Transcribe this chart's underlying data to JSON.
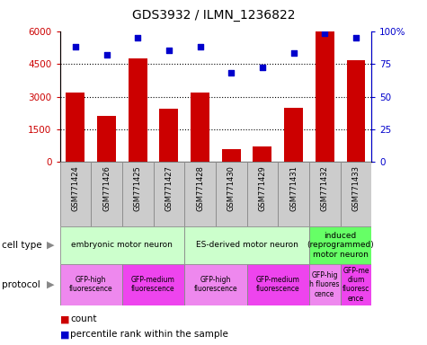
{
  "title": "GDS3932 / ILMN_1236822",
  "samples": [
    "GSM771424",
    "GSM771426",
    "GSM771425",
    "GSM771427",
    "GSM771428",
    "GSM771430",
    "GSM771429",
    "GSM771431",
    "GSM771432",
    "GSM771433"
  ],
  "counts": [
    3200,
    2100,
    4750,
    2450,
    3200,
    600,
    700,
    2500,
    6000,
    4650
  ],
  "percentiles": [
    88,
    82,
    95,
    85,
    88,
    68,
    72,
    83,
    98,
    95
  ],
  "cell_types": [
    {
      "label": "embryonic motor neuron",
      "start": 0,
      "end": 4,
      "color": "#ccffcc"
    },
    {
      "label": "ES-derived motor neuron",
      "start": 4,
      "end": 8,
      "color": "#ccffcc"
    },
    {
      "label": "induced\n(reprogrammed)\nmotor neuron",
      "start": 8,
      "end": 10,
      "color": "#66ff66"
    }
  ],
  "protocols": [
    {
      "label": "GFP-high\nfluorescence",
      "start": 0,
      "end": 2,
      "color": "#ee88ee"
    },
    {
      "label": "GFP-medium\nfluorescence",
      "start": 2,
      "end": 4,
      "color": "#ee44ee"
    },
    {
      "label": "GFP-high\nfluorescence",
      "start": 4,
      "end": 6,
      "color": "#ee88ee"
    },
    {
      "label": "GFP-medium\nfluorescence",
      "start": 6,
      "end": 8,
      "color": "#ee44ee"
    },
    {
      "label": "GFP-hig\nh fluores\ncence",
      "start": 8,
      "end": 9,
      "color": "#ee88ee"
    },
    {
      "label": "GFP-me\ndium\nfluoresc\nence",
      "start": 9,
      "end": 10,
      "color": "#ee44ee"
    }
  ],
  "bar_color": "#cc0000",
  "dot_color_blue": "#0000cc",
  "ylim_left": [
    0,
    6000
  ],
  "ylim_right": [
    0,
    100
  ],
  "yticks_left": [
    0,
    1500,
    3000,
    4500,
    6000
  ],
  "yticks_right": [
    0,
    25,
    50,
    75,
    100
  ],
  "bg_sample_color": "#cccccc"
}
